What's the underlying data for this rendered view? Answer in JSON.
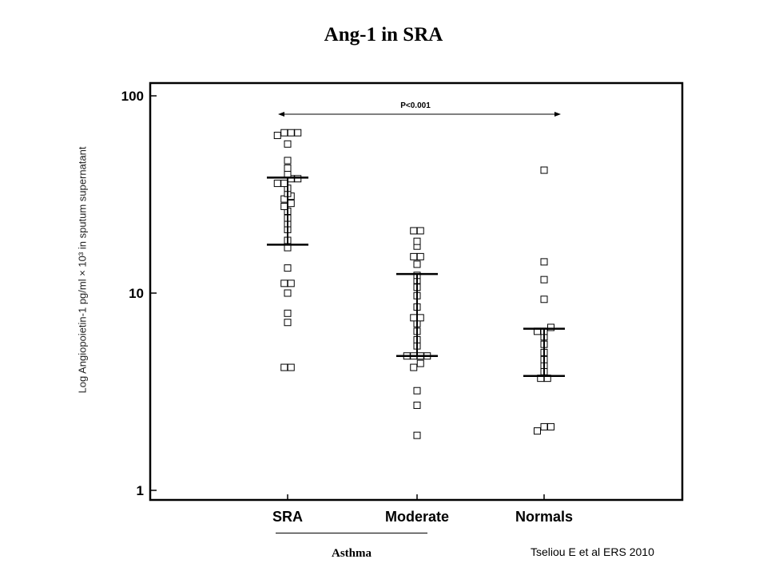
{
  "chart_data": {
    "type": "scatter",
    "title": "Ang-1 in SRA",
    "ylabel": "Log  Angiopoietin-1 pg/ml  × 10³ in sputum supernatant",
    "yscale": "log",
    "ylim": [
      1,
      100
    ],
    "yticks": [
      1,
      10,
      100
    ],
    "categories": [
      "SRA",
      "Moderate",
      "Normals"
    ],
    "series": [
      {
        "category": "SRA",
        "values": [
          4.2,
          4.2,
          7.1,
          7.9,
          10,
          11.2,
          11.2,
          13.4,
          17,
          18.5,
          21,
          22.5,
          24,
          26,
          27.5,
          28.5,
          30,
          31,
          32,
          34,
          36,
          36,
          38,
          38,
          40,
          43,
          47,
          57,
          63,
          65,
          65,
          65
        ],
        "bracket": [
          17.6,
          38.5
        ]
      },
      {
        "category": "Moderate",
        "values": [
          1.9,
          2.7,
          3.2,
          4.2,
          4.4,
          4.8,
          4.8,
          4.8,
          4.8,
          5.4,
          5.8,
          6.4,
          7.0,
          7.5,
          7.5,
          8.5,
          9.7,
          10.7,
          11.6,
          12.3,
          14.0,
          15.3,
          15.3,
          17.3,
          18.3,
          20.7,
          20.7
        ],
        "bracket": [
          4.8,
          12.5
        ]
      },
      {
        "category": "Normals",
        "values": [
          2.0,
          2.1,
          2.1,
          3.7,
          3.7,
          4.0,
          4.3,
          4.6,
          5.0,
          5.5,
          6.0,
          6.4,
          6.4,
          6.7,
          9.3,
          11.7,
          14.4,
          42
        ],
        "bracket": [
          3.8,
          6.6
        ]
      }
    ],
    "annotation": "P<0.001",
    "group_label": "Asthma",
    "citation": "Tseliou E et al ERS 2010"
  }
}
